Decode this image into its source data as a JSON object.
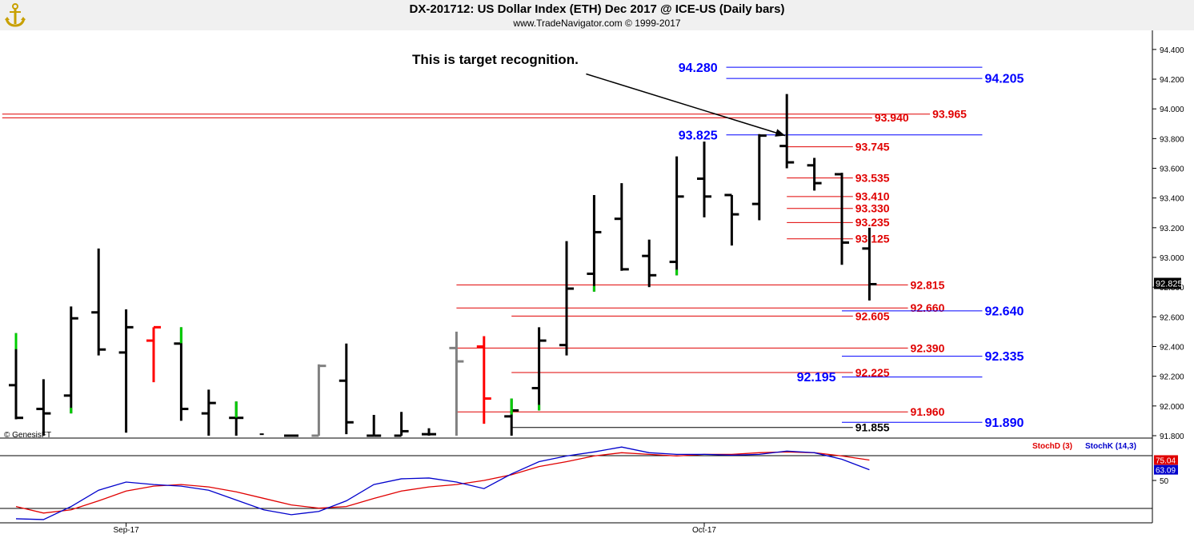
{
  "header": {
    "title": "DX-201712:  US Dollar Index (ETH) Dec 2017 @ ICE-US  (Daily bars)",
    "subtitle": "www.TradeNavigator.com © 1999-2017"
  },
  "colors": {
    "blue_level": "#0000ff",
    "red_level": "#e00000",
    "up_bar": "#00cc00",
    "down_bar": "#ff0000",
    "gray_bar": "#808080",
    "stoch_d": "#e00000",
    "stoch_k": "#0000cc"
  },
  "chart_data": [
    {
      "type": "ohlc-bar",
      "ylim": [
        91.8,
        94.48
      ],
      "yticks": [
        "94.400",
        "94.200",
        "94.000",
        "93.800",
        "93.600",
        "93.400",
        "93.200",
        "93.000",
        "92.800",
        "92.600",
        "92.400",
        "92.200",
        "92.000",
        "91.800"
      ],
      "yticks_values": [
        94.4,
        94.2,
        94.0,
        93.8,
        93.6,
        93.4,
        93.2,
        93.0,
        92.8,
        92.6,
        92.4,
        92.2,
        92.0,
        91.8
      ],
      "xlabels": [
        {
          "label": "Sep-17",
          "bar": 4
        },
        {
          "label": "Oct-17",
          "bar": 25
        }
      ],
      "last_price": "92.825",
      "last_value": 92.825,
      "copyright": "© GenesisFT",
      "annotation": {
        "text": "This is target recognition.",
        "from_bar": 21,
        "from_value": 94.235,
        "to_bar": 28,
        "to_value": 93.82
      },
      "bars": [
        {
          "h": 92.49,
          "l": 91.91,
          "o": 92.14,
          "c": 91.92,
          "color": "up_top"
        },
        {
          "h": 92.18,
          "l": 91.8,
          "o": 91.98,
          "c": 91.95,
          "color": "black"
        },
        {
          "h": 92.67,
          "l": 91.95,
          "o": 92.07,
          "c": 92.59,
          "color": "up_bottom"
        },
        {
          "h": 93.06,
          "l": 92.34,
          "o": 92.63,
          "c": 92.38,
          "color": "black"
        },
        {
          "h": 92.65,
          "l": 91.82,
          "o": 92.36,
          "c": 92.53,
          "color": "black"
        },
        {
          "h": 92.53,
          "l": 92.16,
          "o": 92.44,
          "c": 92.53,
          "color": "red"
        },
        {
          "h": 92.53,
          "l": 91.9,
          "o": 92.42,
          "c": 91.98,
          "color": "up_top"
        },
        {
          "h": 92.11,
          "l": 91.8,
          "o": 91.95,
          "c": 92.02,
          "color": "black"
        },
        {
          "h": 92.03,
          "l": 91.8,
          "o": 91.92,
          "c": 91.92,
          "color": "up_top"
        },
        {
          "h": 91.82,
          "l": 91.8,
          "o": 91.81,
          "c": 91.8,
          "color": "none"
        },
        {
          "h": 91.8,
          "l": 91.8,
          "o": 91.8,
          "c": 91.8,
          "color": "black"
        },
        {
          "h": 92.28,
          "l": 91.8,
          "o": 91.8,
          "c": 92.27,
          "color": "gray"
        },
        {
          "h": 92.42,
          "l": 91.81,
          "o": 92.17,
          "c": 91.89,
          "color": "black"
        },
        {
          "h": 91.94,
          "l": 91.8,
          "o": 91.8,
          "c": 91.8,
          "color": "black"
        },
        {
          "h": 91.96,
          "l": 91.8,
          "o": 91.8,
          "c": 91.83,
          "color": "black"
        },
        {
          "h": 91.85,
          "l": 91.8,
          "o": 91.81,
          "c": 91.81,
          "color": "black"
        },
        {
          "h": 92.5,
          "l": 91.8,
          "o": 92.39,
          "c": 92.3,
          "color": "gray"
        },
        {
          "h": 92.47,
          "l": 91.88,
          "o": 92.4,
          "c": 92.05,
          "color": "red"
        },
        {
          "h": 92.05,
          "l": 91.8,
          "o": 91.93,
          "c": 91.97,
          "color": "up_top"
        },
        {
          "h": 92.53,
          "l": 91.97,
          "o": 92.12,
          "c": 92.44,
          "color": "up_bottom"
        },
        {
          "h": 93.11,
          "l": 92.34,
          "o": 92.41,
          "c": 92.79,
          "color": "black"
        },
        {
          "h": 93.42,
          "l": 92.77,
          "o": 92.89,
          "c": 93.17,
          "color": "up_bottom"
        },
        {
          "h": 93.5,
          "l": 92.91,
          "o": 93.26,
          "c": 92.92,
          "color": "black"
        },
        {
          "h": 93.12,
          "l": 92.8,
          "o": 93.01,
          "c": 92.88,
          "color": "black"
        },
        {
          "h": 93.68,
          "l": 92.88,
          "o": 92.97,
          "c": 93.41,
          "color": "up_bottom"
        },
        {
          "h": 93.78,
          "l": 93.27,
          "o": 93.53,
          "c": 93.41,
          "color": "black"
        },
        {
          "h": 93.42,
          "l": 93.08,
          "o": 93.42,
          "c": 93.29,
          "color": "black"
        },
        {
          "h": 93.83,
          "l": 93.25,
          "o": 93.36,
          "c": 93.82,
          "color": "black"
        },
        {
          "h": 94.1,
          "l": 93.6,
          "o": 93.75,
          "c": 93.64,
          "color": "black"
        },
        {
          "h": 93.67,
          "l": 93.45,
          "o": 93.62,
          "c": 93.5,
          "color": "black"
        },
        {
          "h": 93.57,
          "l": 92.95,
          "o": 93.56,
          "c": 93.1,
          "color": "black"
        },
        {
          "h": 93.2,
          "l": 92.71,
          "o": 93.06,
          "c": 92.82,
          "color": "black"
        }
      ],
      "levels": [
        {
          "value": 94.28,
          "label": "94.280",
          "color": "blue",
          "x1_bar": 25.8,
          "x2_bar": 35.1,
          "label_side": "left",
          "label_bar": 25.6
        },
        {
          "value": 94.205,
          "label": "94.205",
          "color": "blue",
          "x1_bar": 25.8,
          "x2_bar": 35.1,
          "label_side": "right",
          "label_bar": 35.1
        },
        {
          "value": 93.965,
          "label": "93.965",
          "color": "red",
          "x1_bar": -0.5,
          "x2_bar": 33.2,
          "label_side": "right",
          "label_bar": 33.2
        },
        {
          "value": 93.94,
          "label": "93.940",
          "color": "red",
          "x1_bar": -0.5,
          "x2_bar": 31.1,
          "label_side": "right",
          "label_bar": 31.1
        },
        {
          "value": 93.825,
          "label": "93.825",
          "color": "blue",
          "x1_bar": 25.8,
          "x2_bar": 35.1,
          "label_side": "left",
          "label_bar": 25.6
        },
        {
          "value": 93.745,
          "label": "93.745",
          "color": "red",
          "x1_bar": 28.0,
          "x2_bar": 30.4,
          "label_side": "right",
          "label_bar": 30.4
        },
        {
          "value": 93.535,
          "label": "93.535",
          "color": "red",
          "x1_bar": 28.0,
          "x2_bar": 30.4,
          "label_side": "right",
          "label_bar": 30.4
        },
        {
          "value": 93.41,
          "label": "93.410",
          "color": "red",
          "x1_bar": 28.0,
          "x2_bar": 30.4,
          "label_side": "right",
          "label_bar": 30.4
        },
        {
          "value": 93.33,
          "label": "93.330",
          "color": "red",
          "x1_bar": 28.0,
          "x2_bar": 30.4,
          "label_side": "right",
          "label_bar": 30.4
        },
        {
          "value": 93.235,
          "label": "93.235",
          "color": "red",
          "x1_bar": 28.0,
          "x2_bar": 30.4,
          "label_side": "right",
          "label_bar": 30.4
        },
        {
          "value": 93.125,
          "label": "93.125",
          "color": "red",
          "x1_bar": 28.0,
          "x2_bar": 30.4,
          "label_side": "right",
          "label_bar": 30.4
        },
        {
          "value": 92.815,
          "label": "92.815",
          "color": "red",
          "x1_bar": 16.0,
          "x2_bar": 32.4,
          "label_side": "right",
          "label_bar": 32.4
        },
        {
          "value": 92.66,
          "label": "92.660",
          "color": "red",
          "x1_bar": 16.0,
          "x2_bar": 32.4,
          "label_side": "right",
          "label_bar": 32.4
        },
        {
          "value": 92.64,
          "label": "92.640",
          "color": "blue",
          "x1_bar": 30.0,
          "x2_bar": 35.1,
          "label_side": "right",
          "label_bar": 35.1
        },
        {
          "value": 92.605,
          "label": "92.605",
          "color": "red",
          "x1_bar": 18.0,
          "x2_bar": 30.4,
          "label_side": "right",
          "label_bar": 30.4
        },
        {
          "value": 92.39,
          "label": "92.390",
          "color": "red",
          "x1_bar": 16.0,
          "x2_bar": 32.4,
          "label_side": "right",
          "label_bar": 32.4
        },
        {
          "value": 92.335,
          "label": "92.335",
          "color": "blue",
          "x1_bar": 30.0,
          "x2_bar": 35.1,
          "label_side": "right",
          "label_bar": 35.1
        },
        {
          "value": 92.225,
          "label": "92.225",
          "color": "red",
          "x1_bar": 18.0,
          "x2_bar": 30.4,
          "label_side": "right",
          "label_bar": 30.4
        },
        {
          "value": 92.195,
          "label": "92.195",
          "color": "blue",
          "x1_bar": 30.0,
          "x2_bar": 35.1,
          "label_side": "left",
          "label_bar": 29.9
        },
        {
          "value": 91.96,
          "label": "91.960",
          "color": "red",
          "x1_bar": 16.0,
          "x2_bar": 32.4,
          "label_side": "right",
          "label_bar": 32.4
        },
        {
          "value": 91.89,
          "label": "91.890",
          "color": "blue",
          "x1_bar": 30.0,
          "x2_bar": 35.1,
          "label_side": "right",
          "label_bar": 35.1
        },
        {
          "value": 91.855,
          "label": "91.855",
          "color": "black",
          "x1_bar": 18.0,
          "x2_bar": 30.4,
          "label_side": "right",
          "label_bar": 30.4
        }
      ]
    },
    {
      "type": "line",
      "legend": [
        {
          "name": "StochD (3)",
          "color": "#e00000"
        },
        {
          "name": "StochK (14,3)",
          "color": "#0000cc"
        }
      ],
      "ylim": [
        0,
        100
      ],
      "ytick": "50",
      "ytick_value": 50,
      "reference_lines": [
        80,
        20
      ],
      "last_values": [
        {
          "label": "75.04",
          "value": 75.04,
          "color": "#e00000"
        },
        {
          "label": "63.09",
          "value": 63.09,
          "color": "#0000cc"
        }
      ],
      "series": [
        {
          "name": "StochD (3)",
          "values": [
            18,
            10,
            14,
            25,
            37,
            43,
            45,
            42,
            36,
            28,
            20,
            16,
            18,
            28,
            37,
            42,
            45,
            50,
            57,
            67,
            73,
            80,
            84,
            82,
            80,
            82,
            82,
            84,
            85,
            84,
            80,
            75.04
          ]
        },
        {
          "name": "StochK (14,3)",
          "values": [
            3,
            2,
            18,
            38,
            48,
            45,
            43,
            38,
            26,
            14,
            8,
            12,
            25,
            45,
            52,
            53,
            48,
            40,
            58,
            73,
            80,
            85,
            91,
            84,
            82,
            82,
            81,
            82,
            86,
            84,
            76,
            63.09
          ]
        }
      ]
    }
  ]
}
